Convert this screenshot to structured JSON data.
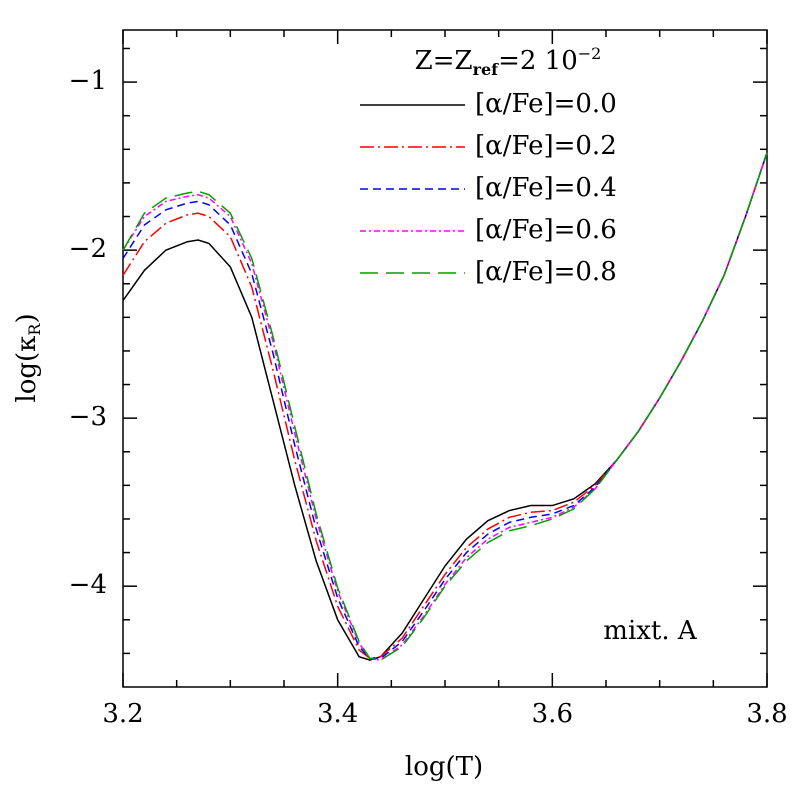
{
  "chart_data": {
    "type": "line",
    "x_label": "log(T)",
    "y_label": {
      "main": "log(κ",
      "sub": "R",
      "end": ")"
    },
    "legend_title": {
      "main": "Z=Z",
      "sub": "ref",
      "mid": "=2 10",
      "sup": "−2"
    },
    "annotation": "mixt. A",
    "xlim": [
      3.2,
      3.8
    ],
    "ylim": [
      -4.6,
      -0.69
    ],
    "xticks": [
      3.2,
      3.4,
      3.6,
      3.8
    ],
    "xticks_minor": [
      3.25,
      3.3,
      3.35,
      3.45,
      3.5,
      3.55,
      3.65,
      3.7,
      3.75
    ],
    "yticks": [
      {
        "value": -1,
        "label": "−1"
      },
      {
        "value": -2,
        "label": "−2"
      },
      {
        "value": -3,
        "label": "−3"
      },
      {
        "value": -4,
        "label": "−4"
      }
    ],
    "yticks_minor": [
      -4.4,
      -4.2,
      -3.8,
      -3.6,
      -3.4,
      -3.2,
      -2.8,
      -2.6,
      -2.4,
      -2.2,
      -1.8,
      -1.6,
      -1.4,
      -1.2,
      -0.8
    ],
    "x": [
      3.2,
      3.22,
      3.24,
      3.26,
      3.27,
      3.28,
      3.3,
      3.32,
      3.34,
      3.36,
      3.38,
      3.4,
      3.42,
      3.43,
      3.44,
      3.46,
      3.48,
      3.5,
      3.52,
      3.54,
      3.56,
      3.58,
      3.6,
      3.62,
      3.64,
      3.66,
      3.68,
      3.7,
      3.72,
      3.74,
      3.76,
      3.78,
      3.8
    ],
    "series": [
      {
        "name": "[α/Fe]=0.0",
        "color": "#000000",
        "dash": "solid",
        "values": [
          -2.3,
          -2.12,
          -2.0,
          -1.95,
          -1.94,
          -1.96,
          -2.1,
          -2.4,
          -2.9,
          -3.4,
          -3.85,
          -4.2,
          -4.42,
          -4.44,
          -4.42,
          -4.28,
          -4.08,
          -3.88,
          -3.72,
          -3.61,
          -3.55,
          -3.52,
          -3.52,
          -3.48,
          -3.39,
          -3.25,
          -3.08,
          -2.88,
          -2.66,
          -2.42,
          -2.15,
          -1.8,
          -1.42
        ]
      },
      {
        "name": "[α/Fe]=0.2",
        "color": "#ff0000",
        "dash": "dashdot",
        "values": [
          -2.15,
          -1.95,
          -1.84,
          -1.79,
          -1.78,
          -1.8,
          -1.92,
          -2.22,
          -2.72,
          -3.25,
          -3.73,
          -4.12,
          -4.38,
          -4.43,
          -4.42,
          -4.31,
          -4.12,
          -3.93,
          -3.77,
          -3.66,
          -3.59,
          -3.56,
          -3.55,
          -3.5,
          -3.4,
          -3.25,
          -3.08,
          -2.88,
          -2.66,
          -2.42,
          -2.15,
          -1.8,
          -1.42
        ]
      },
      {
        "name": "[α/Fe]=0.4",
        "color": "#0000ff",
        "dash": "dashed",
        "values": [
          -2.05,
          -1.85,
          -1.76,
          -1.72,
          -1.71,
          -1.73,
          -1.85,
          -2.14,
          -2.62,
          -3.16,
          -3.66,
          -4.07,
          -4.36,
          -4.43,
          -4.43,
          -4.33,
          -4.15,
          -3.96,
          -3.8,
          -3.69,
          -3.62,
          -3.59,
          -3.57,
          -3.52,
          -3.41,
          -3.25,
          -3.08,
          -2.88,
          -2.66,
          -2.42,
          -2.15,
          -1.8,
          -1.42
        ]
      },
      {
        "name": "[α/Fe]=0.6",
        "color": "#ff00ff",
        "dash": "dotdash",
        "values": [
          -2.0,
          -1.8,
          -1.71,
          -1.68,
          -1.67,
          -1.69,
          -1.8,
          -2.08,
          -2.55,
          -3.09,
          -3.6,
          -4.03,
          -4.34,
          -4.43,
          -4.44,
          -4.35,
          -4.18,
          -3.99,
          -3.83,
          -3.72,
          -3.65,
          -3.62,
          -3.59,
          -3.53,
          -3.42,
          -3.25,
          -3.08,
          -2.88,
          -2.66,
          -2.42,
          -2.15,
          -1.8,
          -1.42
        ]
      },
      {
        "name": "[α/Fe]=0.8",
        "color": "#00a000",
        "dash": "longdash",
        "values": [
          -2.0,
          -1.78,
          -1.69,
          -1.66,
          -1.65,
          -1.67,
          -1.78,
          -2.05,
          -2.52,
          -3.05,
          -3.57,
          -4.01,
          -4.33,
          -4.43,
          -4.44,
          -4.36,
          -4.19,
          -4.0,
          -3.85,
          -3.74,
          -3.67,
          -3.64,
          -3.6,
          -3.54,
          -3.42,
          -3.25,
          -3.08,
          -2.88,
          -2.66,
          -2.42,
          -2.15,
          -1.8,
          -1.42
        ]
      }
    ]
  }
}
